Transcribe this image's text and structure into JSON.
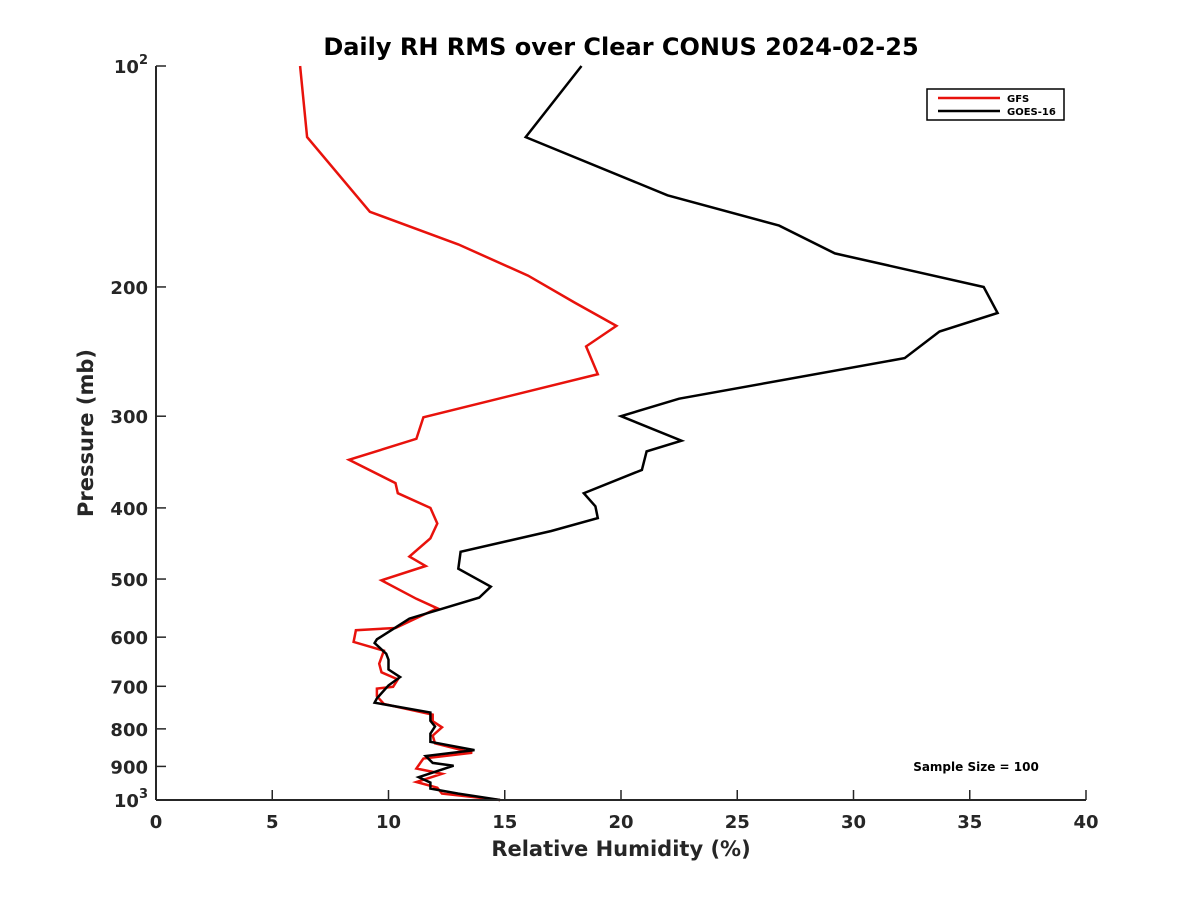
{
  "chart_data": {
    "type": "line",
    "title": "Daily RH RMS over Clear CONUS 2024-02-25",
    "xlabel": "Relative Humidity (%)",
    "ylabel": "Pressure (mb)",
    "xlim": [
      0,
      40
    ],
    "ylim": [
      100,
      1000
    ],
    "yscale": "log",
    "y_reversed": true,
    "xticks": [
      0,
      5,
      10,
      15,
      20,
      25,
      30,
      35,
      40
    ],
    "yticks": [
      {
        "value": 100,
        "base": "10",
        "exp": "2"
      },
      {
        "value": 200,
        "text": "200"
      },
      {
        "value": 300,
        "text": "300"
      },
      {
        "value": 400,
        "text": "400"
      },
      {
        "value": 500,
        "text": "500"
      },
      {
        "value": 600,
        "text": "600"
      },
      {
        "value": 700,
        "text": "700"
      },
      {
        "value": 800,
        "text": "800"
      },
      {
        "value": 900,
        "text": "900"
      },
      {
        "value": 1000,
        "base": "10",
        "exp": "3"
      }
    ],
    "grid": false,
    "legend_position": "top-right",
    "annotation": "Sample Size = 100",
    "series": [
      {
        "name": "GFS",
        "color": "#e8120c",
        "points": [
          [
            6.2,
            100
          ],
          [
            6.5,
            125
          ],
          [
            9.2,
            158
          ],
          [
            13.0,
            175
          ],
          [
            16.0,
            193
          ],
          [
            18.0,
            210
          ],
          [
            19.8,
            226
          ],
          [
            18.5,
            241
          ],
          [
            19.0,
            263
          ],
          [
            11.5,
            301
          ],
          [
            11.2,
            322
          ],
          [
            8.3,
            344
          ],
          [
            10.3,
            370
          ],
          [
            10.4,
            382
          ],
          [
            11.8,
            400
          ],
          [
            12.1,
            420
          ],
          [
            11.8,
            440
          ],
          [
            10.9,
            466
          ],
          [
            11.6,
            480
          ],
          [
            9.7,
            502
          ],
          [
            11.2,
            532
          ],
          [
            12.1,
            548
          ],
          [
            10.3,
            583
          ],
          [
            8.6,
            587
          ],
          [
            8.5,
            609
          ],
          [
            9.8,
            626
          ],
          [
            9.6,
            652
          ],
          [
            9.7,
            670
          ],
          [
            10.4,
            685
          ],
          [
            10.2,
            701
          ],
          [
            9.5,
            705
          ],
          [
            9.5,
            722
          ],
          [
            9.8,
            740
          ],
          [
            11.9,
            765
          ],
          [
            11.9,
            781
          ],
          [
            12.3,
            796
          ],
          [
            11.9,
            817
          ],
          [
            12.0,
            837
          ],
          [
            13.6,
            862
          ],
          [
            11.5,
            878
          ],
          [
            11.2,
            906
          ],
          [
            12.3,
            921
          ],
          [
            11.2,
            945
          ],
          [
            12.1,
            962
          ],
          [
            12.3,
            980
          ],
          [
            14.8,
            1000
          ]
        ]
      },
      {
        "name": "GOES-16",
        "color": "#000000",
        "points": [
          [
            18.3,
            100
          ],
          [
            15.9,
            125
          ],
          [
            22.0,
            150
          ],
          [
            26.8,
            165
          ],
          [
            29.2,
            180
          ],
          [
            35.6,
            200
          ],
          [
            36.2,
            217
          ],
          [
            33.7,
            230
          ],
          [
            32.2,
            250
          ],
          [
            22.5,
            284
          ],
          [
            20.0,
            300
          ],
          [
            22.6,
            324
          ],
          [
            21.1,
            335
          ],
          [
            20.9,
            355
          ],
          [
            18.4,
            382
          ],
          [
            18.9,
            398
          ],
          [
            19.0,
            413
          ],
          [
            17.0,
            430
          ],
          [
            13.1,
            459
          ],
          [
            13.0,
            484
          ],
          [
            14.4,
            512
          ],
          [
            13.9,
            530
          ],
          [
            10.9,
            566
          ],
          [
            10.2,
            585
          ],
          [
            9.5,
            604
          ],
          [
            9.4,
            611
          ],
          [
            9.9,
            632
          ],
          [
            10.0,
            644
          ],
          [
            10.0,
            664
          ],
          [
            10.5,
            680
          ],
          [
            10.0,
            698
          ],
          [
            9.5,
            727
          ],
          [
            9.4,
            737
          ],
          [
            11.8,
            760
          ],
          [
            11.8,
            780
          ],
          [
            12.0,
            794
          ],
          [
            11.8,
            812
          ],
          [
            11.8,
            833
          ],
          [
            13.7,
            855
          ],
          [
            11.6,
            871
          ],
          [
            11.9,
            890
          ],
          [
            12.8,
            898
          ],
          [
            11.3,
            931
          ],
          [
            11.8,
            947
          ],
          [
            11.8,
            965
          ],
          [
            13.0,
            980
          ],
          [
            14.8,
            1000
          ]
        ]
      }
    ]
  }
}
